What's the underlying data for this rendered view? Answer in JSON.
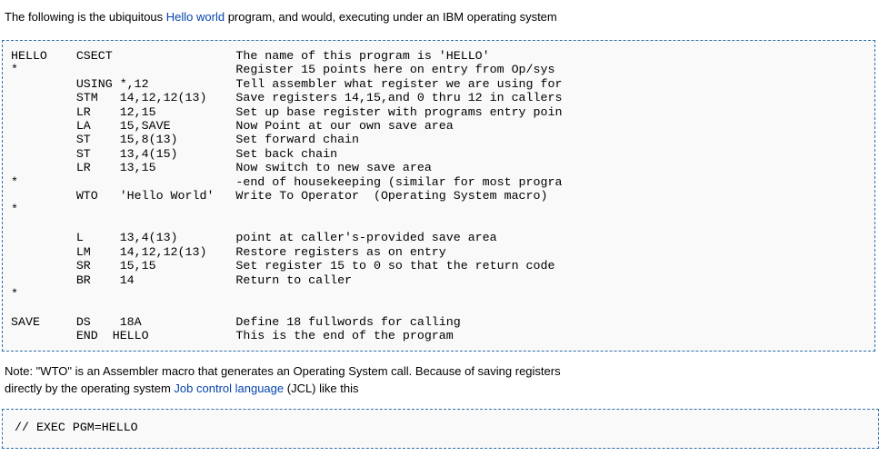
{
  "intro": {
    "before": "The following is the ubiquitous ",
    "link_text": "Hello world",
    "after": " program, and would, executing under an IBM operating system"
  },
  "code_block_1": {
    "lines": [
      "HELLO    CSECT                 The name of this program is 'HELLO'",
      "*                              Register 15 points here on entry from Op/sys",
      "         USING *,12            Tell assembler what register we are using for",
      "         STM   14,12,12(13)    Save registers 14,15,and 0 thru 12 in callers",
      "         LR    12,15           Set up base register with programs entry poin",
      "         LA    15,SAVE         Now Point at our own save area",
      "         ST    15,8(13)        Set forward chain",
      "         ST    13,4(15)        Set back chain",
      "         LR    13,15           Now switch to new save area",
      "*                              -end of housekeeping (similar for most progra",
      "         WTO   'Hello World'   Write To Operator  (Operating System macro)",
      "*",
      "",
      "         L     13,4(13)        point at caller's-provided save area",
      "         LM    14,12,12(13)    Restore registers as on entry",
      "         SR    15,15           Set register 15 to 0 so that the return code",
      "         BR    14              Return to caller",
      "*",
      "",
      "SAVE     DS    18A             Define 18 fullwords for calling",
      "         END  HELLO            This is the end of the program"
    ]
  },
  "note": {
    "line1": "Note: \"WTO\" is an Assembler macro that generates an Operating System call. Because of saving registers",
    "line2_before": "directly by the operating system ",
    "line2_link_text": "Job control language",
    "line2_after": " (JCL) like this"
  },
  "code_block_2": {
    "lines": [
      "// EXEC PGM=HELLO"
    ]
  },
  "colors": {
    "link": "#0645ad",
    "pre_border": "#2f6fab",
    "pre_bg": "#f9f9f9",
    "text": "#000000"
  }
}
